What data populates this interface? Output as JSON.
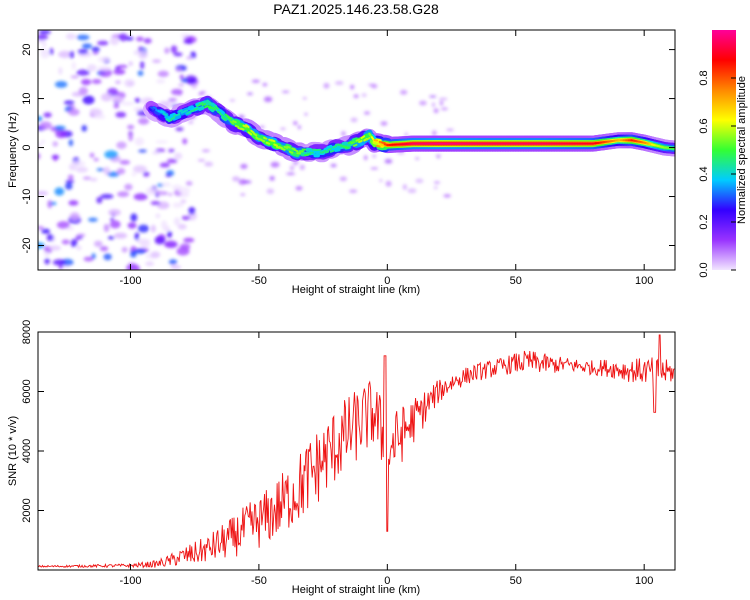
{
  "page_title": "PAZ1.2025.146.23.58.G28",
  "chart_data": [
    {
      "type": "heatmap",
      "title": "PAZ1.2025.146.23.58.G28",
      "xlabel": "Height of straight line (km)",
      "ylabel": "Frequency (Hz)",
      "xlim": [
        -136,
        112
      ],
      "ylim": [
        -25,
        24
      ],
      "x_ticks": [
        -100,
        -50,
        0,
        50,
        100
      ],
      "y_ticks": [
        -20,
        -10,
        0,
        10,
        20
      ],
      "colorbar": {
        "label": "Normalized spectral amplitude",
        "range": [
          0.0,
          1.0
        ],
        "ticks": [
          0.0,
          0.2,
          0.4,
          0.6,
          0.8
        ],
        "tick_labels": [
          "0.0",
          "0.2",
          "0.4",
          "0.6",
          "0.8"
        ],
        "colormap": [
          "#f2e6ff",
          "#9933ff",
          "#3300ff",
          "#00ccff",
          "#33ff33",
          "#ffff00",
          "#ff8800",
          "#ff0000",
          "#ff0099"
        ]
      },
      "ridge": {
        "x": [
          -92,
          -85,
          -80,
          -75,
          -70,
          -65,
          -60,
          -55,
          -50,
          -45,
          -40,
          -35,
          -30,
          -25,
          -20,
          -15,
          -10,
          -7,
          -5,
          0,
          10,
          20,
          40,
          60,
          80,
          90,
          95,
          100,
          104,
          108,
          112
        ],
        "y": [
          8,
          6,
          7,
          8,
          9,
          7,
          5,
          4,
          2,
          1,
          0,
          -1,
          -1,
          -1,
          0,
          0.5,
          1.5,
          2.5,
          1,
          0.5,
          0.8,
          0.8,
          0.8,
          0.8,
          0.8,
          1.5,
          1.5,
          1,
          0.5,
          0,
          -0.2
        ],
        "amplitude": [
          0.3,
          0.45,
          0.4,
          0.45,
          0.5,
          0.45,
          0.55,
          0.6,
          0.55,
          0.6,
          0.55,
          0.55,
          0.45,
          0.45,
          0.45,
          0.5,
          0.6,
          0.55,
          0.7,
          0.85,
          0.95,
          0.98,
          0.95,
          0.95,
          0.9,
          0.7,
          0.85,
          0.75,
          0.6,
          0.55,
          0.5
        ]
      },
      "noise_region": {
        "x_range": [
          -136,
          -85
        ],
        "y_range": [
          -25,
          24
        ],
        "amplitude": [
          0.0,
          0.35
        ]
      },
      "grid": false
    },
    {
      "type": "line",
      "xlabel": "Height of straight line (km)",
      "ylabel": "SNR (10 * v/v)",
      "xlim": [
        -136,
        112
      ],
      "ylim": [
        0,
        8000
      ],
      "x_ticks": [
        -100,
        -50,
        0,
        50,
        100
      ],
      "y_ticks": [
        2000,
        4000,
        6000,
        8000
      ],
      "color": "#ee1111",
      "series": [
        {
          "x": [
            -136,
            -120,
            -100,
            -90,
            -85,
            -80,
            -75,
            -70,
            -65,
            -60,
            -55,
            -50,
            -45,
            -40,
            -35,
            -30,
            -25,
            -20,
            -15,
            -10,
            -5,
            0,
            5,
            10,
            15,
            20,
            25,
            30,
            35,
            40,
            45,
            50,
            55,
            60,
            65,
            70,
            75,
            80,
            85,
            90,
            95,
            100,
            105,
            110,
            112
          ],
          "y": [
            120,
            130,
            150,
            200,
            300,
            450,
            550,
            700,
            900,
            1100,
            1400,
            1600,
            1900,
            2300,
            2700,
            3200,
            3700,
            4200,
            4600,
            5000,
            5300,
            4000,
            4500,
            5000,
            5500,
            6000,
            6300,
            6500,
            6650,
            6750,
            6850,
            6950,
            7000,
            6950,
            6900,
            6900,
            6850,
            6800,
            6800,
            6750,
            6700,
            6700,
            6650,
            6650,
            6650
          ],
          "noise": [
            30,
            40,
            60,
            120,
            200,
            300,
            400,
            450,
            600,
            700,
            800,
            900,
            1000,
            1100,
            1200,
            1300,
            1300,
            1300,
            1300,
            1200,
            1200,
            1200,
            1000,
            800,
            600,
            400,
            350,
            300,
            300,
            300,
            300,
            350,
            400,
            350,
            300,
            250,
            250,
            250,
            300,
            350,
            400,
            450,
            500,
            400,
            300
          ]
        }
      ],
      "grid": false
    }
  ]
}
